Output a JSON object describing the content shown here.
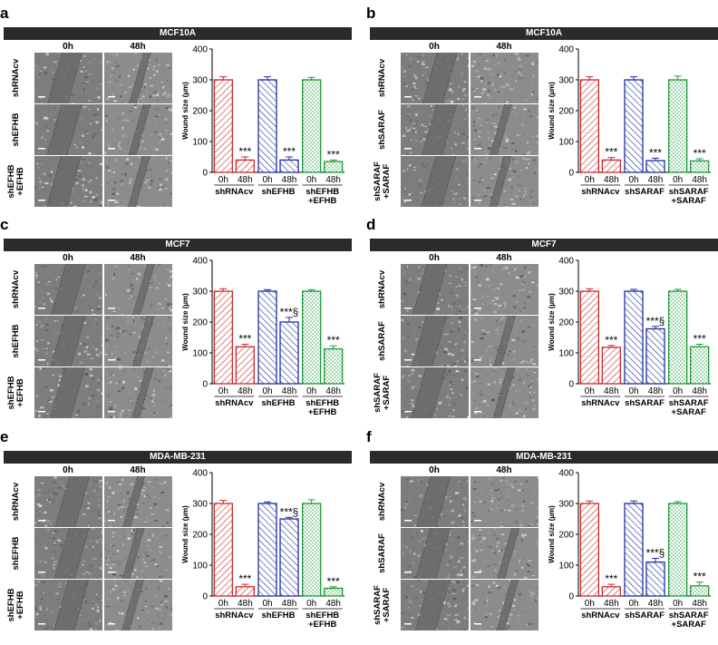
{
  "panels": [
    {
      "id": "a",
      "label": "a",
      "cell_line": "MCF10A",
      "col_headers": [
        "0h",
        "48h"
      ],
      "row_labels": [
        [
          "shRNAcv"
        ],
        [
          "shEFHB"
        ],
        [
          "shEFHB",
          "+EFHB"
        ]
      ],
      "images": [
        {
          "t0": "wound-image-0h",
          "t48": "wound-image-48h"
        },
        {
          "t0": "wound-image-0h",
          "t48": "wound-image-48h"
        },
        {
          "t0": "wound-image-0h",
          "t48": "wound-image-48h"
        }
      ]
    },
    {
      "id": "b",
      "label": "b",
      "cell_line": "MCF10A",
      "col_headers": [
        "0h",
        "48h"
      ],
      "row_labels": [
        [
          "shRNAcv"
        ],
        [
          "shSARAF"
        ],
        [
          "shSARAF",
          "+SARAF"
        ]
      ],
      "images": [
        {
          "t0": "wound-image-0h",
          "t48": "wound-image-48h"
        },
        {
          "t0": "wound-image-0h",
          "t48": "wound-image-48h"
        },
        {
          "t0": "wound-image-0h",
          "t48": "wound-image-48h"
        }
      ]
    },
    {
      "id": "c",
      "label": "c",
      "cell_line": "MCF7",
      "col_headers": [
        "0h",
        "48h"
      ],
      "row_labels": [
        [
          "shRNAcv"
        ],
        [
          "shEFHB"
        ],
        [
          "shEFHB",
          "+EFHB"
        ]
      ],
      "images": [
        {
          "t0": "wound-image-0h",
          "t48": "wound-image-48h"
        },
        {
          "t0": "wound-image-0h",
          "t48": "wound-image-48h"
        },
        {
          "t0": "wound-image-0h",
          "t48": "wound-image-48h"
        }
      ]
    },
    {
      "id": "d",
      "label": "d",
      "cell_line": "MCF7",
      "col_headers": [
        "0h",
        "48h"
      ],
      "row_labels": [
        [
          "shRNAcv"
        ],
        [
          "shSARAF"
        ],
        [
          "shSARAF",
          "+SARAF"
        ]
      ],
      "images": [
        {
          "t0": "wound-image-0h",
          "t48": "wound-image-48h"
        },
        {
          "t0": "wound-image-0h",
          "t48": "wound-image-48h"
        },
        {
          "t0": "wound-image-0h",
          "t48": "wound-image-48h"
        }
      ]
    },
    {
      "id": "e",
      "label": "e",
      "cell_line": "MDA-MB-231",
      "col_headers": [
        "0h",
        "48h"
      ],
      "row_labels": [
        [
          "shRNAcv"
        ],
        [
          "shEFHB"
        ],
        [
          "shEFHB",
          "+EFHB"
        ]
      ],
      "images": [
        {
          "t0": "wound-image-0h",
          "t48": "wound-image-48h"
        },
        {
          "t0": "wound-image-0h",
          "t48": "wound-image-48h"
        },
        {
          "t0": "wound-image-0h",
          "t48": "wound-image-48h"
        }
      ]
    },
    {
      "id": "f",
      "label": "f",
      "cell_line": "MDA-MB-231",
      "col_headers": [
        "0h",
        "48h"
      ],
      "row_labels": [
        [
          "shRNAcv"
        ],
        [
          "shSARAF"
        ],
        [
          "shSARAF",
          "+SARAF"
        ]
      ],
      "images": [
        {
          "t0": "wound-image-0h",
          "t48": "wound-image-48h"
        },
        {
          "t0": "wound-image-0h",
          "t48": "wound-image-48h"
        },
        {
          "t0": "wound-image-0h",
          "t48": "wound-image-48h"
        }
      ]
    }
  ],
  "chart_data": [
    {
      "panel": "a",
      "type": "bar",
      "ylabel": "Wound size (µm)",
      "ylim": [
        0,
        400
      ],
      "yticks": [
        0,
        100,
        200,
        300,
        400
      ],
      "time_labels": [
        "0h",
        "48h"
      ],
      "groups": [
        {
          "name": [
            "shRNAcv"
          ],
          "color": "#cc2a2a",
          "pattern": "diag-dense",
          "values": [
            300,
            40
          ],
          "errors": [
            10,
            10
          ],
          "annotations": [
            "",
            "***"
          ]
        },
        {
          "name": [
            "shEFHB"
          ],
          "color": "#1f2f9e",
          "pattern": "diag-wide",
          "values": [
            300,
            40
          ],
          "errors": [
            10,
            10
          ],
          "annotations": [
            "",
            "***"
          ]
        },
        {
          "name": [
            "shEFHB",
            "+EFHB"
          ],
          "color": "#1f9a3c",
          "pattern": "dots",
          "values": [
            300,
            35
          ],
          "errors": [
            8,
            5
          ],
          "annotations": [
            "",
            "***"
          ]
        }
      ]
    },
    {
      "panel": "b",
      "type": "bar",
      "ylabel": "Wound size (µm)",
      "ylim": [
        0,
        400
      ],
      "yticks": [
        0,
        100,
        200,
        300,
        400
      ],
      "time_labels": [
        "0h",
        "48h"
      ],
      "groups": [
        {
          "name": [
            "shRNAcv"
          ],
          "color": "#cc2a2a",
          "pattern": "diag-dense",
          "values": [
            300,
            40
          ],
          "errors": [
            10,
            8
          ],
          "annotations": [
            "",
            "***"
          ]
        },
        {
          "name": [
            "shSARAF"
          ],
          "color": "#1f2f9e",
          "pattern": "diag-wide",
          "values": [
            300,
            38
          ],
          "errors": [
            10,
            8
          ],
          "annotations": [
            "",
            "***"
          ]
        },
        {
          "name": [
            "shSARAF",
            "+SARAF"
          ],
          "color": "#1f9a3c",
          "pattern": "dots",
          "values": [
            300,
            37
          ],
          "errors": [
            12,
            7
          ],
          "annotations": [
            "",
            "***"
          ]
        }
      ]
    },
    {
      "panel": "c",
      "type": "bar",
      "ylabel": "Wound size (µm)",
      "ylim": [
        0,
        400
      ],
      "yticks": [
        0,
        100,
        200,
        300,
        400
      ],
      "time_labels": [
        "0h",
        "48h"
      ],
      "groups": [
        {
          "name": [
            "shRNAcv"
          ],
          "color": "#cc2a2a",
          "pattern": "diag-dense",
          "values": [
            300,
            120
          ],
          "errors": [
            8,
            8
          ],
          "annotations": [
            "",
            "***"
          ]
        },
        {
          "name": [
            "shEFHB"
          ],
          "color": "#1f2f9e",
          "pattern": "diag-wide",
          "values": [
            300,
            200
          ],
          "errors": [
            5,
            15
          ],
          "annotations": [
            "",
            "***§"
          ]
        },
        {
          "name": [
            "shEFHB",
            "+EFHB"
          ],
          "color": "#1f9a3c",
          "pattern": "dots",
          "values": [
            300,
            113
          ],
          "errors": [
            5,
            10
          ],
          "annotations": [
            "",
            "***"
          ]
        }
      ]
    },
    {
      "panel": "d",
      "type": "bar",
      "ylabel": "Wound size (µm)",
      "ylim": [
        0,
        400
      ],
      "yticks": [
        0,
        100,
        200,
        300,
        400
      ],
      "time_labels": [
        "0h",
        "48h"
      ],
      "groups": [
        {
          "name": [
            "shRNAcv"
          ],
          "color": "#cc2a2a",
          "pattern": "diag-dense",
          "values": [
            300,
            118
          ],
          "errors": [
            8,
            6
          ],
          "annotations": [
            "",
            "***"
          ]
        },
        {
          "name": [
            "shSARAF"
          ],
          "color": "#1f2f9e",
          "pattern": "diag-wide",
          "values": [
            300,
            178
          ],
          "errors": [
            6,
            8
          ],
          "annotations": [
            "",
            "***§"
          ]
        },
        {
          "name": [
            "shSARAF",
            "+SARAF"
          ],
          "color": "#1f9a3c",
          "pattern": "dots",
          "values": [
            300,
            120
          ],
          "errors": [
            6,
            8
          ],
          "annotations": [
            "",
            "***"
          ]
        }
      ]
    },
    {
      "panel": "e",
      "type": "bar",
      "ylabel": "Wound size (µm)",
      "ylim": [
        0,
        400
      ],
      "yticks": [
        0,
        100,
        200,
        300,
        400
      ],
      "time_labels": [
        "0h",
        "48h"
      ],
      "groups": [
        {
          "name": [
            "shRNAcv"
          ],
          "color": "#cc2a2a",
          "pattern": "diag-dense",
          "values": [
            300,
            30
          ],
          "errors": [
            10,
            8
          ],
          "annotations": [
            "",
            "***"
          ]
        },
        {
          "name": [
            "shEFHB"
          ],
          "color": "#1f2f9e",
          "pattern": "diag-wide",
          "values": [
            300,
            250
          ],
          "errors": [
            5,
            5
          ],
          "annotations": [
            "",
            "***§"
          ]
        },
        {
          "name": [
            "shEFHB",
            "+EFHB"
          ],
          "color": "#1f9a3c",
          "pattern": "dots",
          "values": [
            300,
            25
          ],
          "errors": [
            12,
            5
          ],
          "annotations": [
            "",
            "***"
          ]
        }
      ]
    },
    {
      "panel": "f",
      "type": "bar",
      "ylabel": "Wound size (µm)",
      "ylim": [
        0,
        400
      ],
      "yticks": [
        0,
        100,
        200,
        300,
        400
      ],
      "time_labels": [
        "0h",
        "48h"
      ],
      "groups": [
        {
          "name": [
            "shRNAcv"
          ],
          "color": "#cc2a2a",
          "pattern": "diag-dense",
          "values": [
            300,
            30
          ],
          "errors": [
            8,
            8
          ],
          "annotations": [
            "",
            "***"
          ]
        },
        {
          "name": [
            "shSARAF"
          ],
          "color": "#1f2f9e",
          "pattern": "diag-wide",
          "values": [
            300,
            110
          ],
          "errors": [
            8,
            12
          ],
          "annotations": [
            "",
            "***§"
          ]
        },
        {
          "name": [
            "shSARAF",
            "+SARAF"
          ],
          "color": "#1f9a3c",
          "pattern": "dots",
          "values": [
            300,
            33
          ],
          "errors": [
            6,
            12
          ],
          "annotations": [
            "",
            "***"
          ]
        }
      ]
    }
  ]
}
